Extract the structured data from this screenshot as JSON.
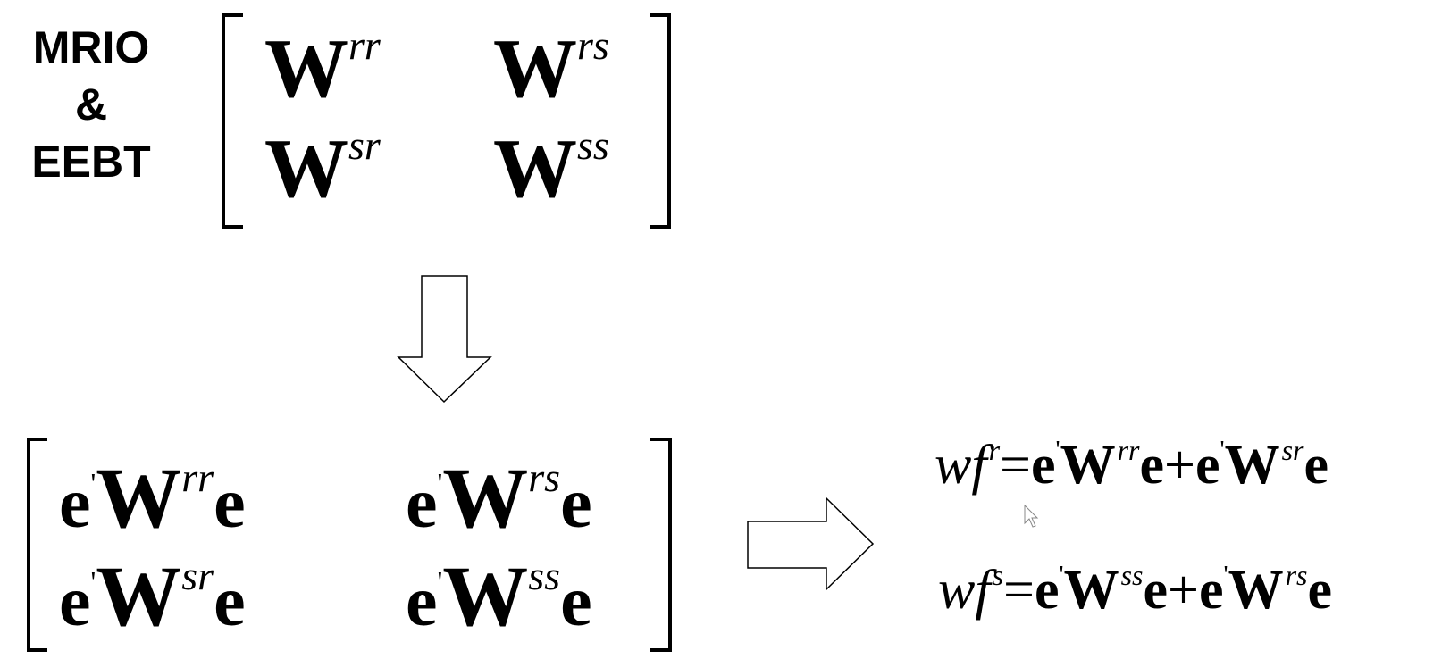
{
  "label": {
    "line1": "MRIO",
    "line2": "&",
    "line3": "EEBT"
  },
  "matrix_w": {
    "symbol": "W",
    "cells": [
      {
        "sup": "rr"
      },
      {
        "sup": "rs"
      },
      {
        "sup": "sr"
      },
      {
        "sup": "ss"
      }
    ]
  },
  "matrix_ewe": {
    "e": "e",
    "prime": "'",
    "W": "W",
    "cells": [
      {
        "sup": "rr"
      },
      {
        "sup": "rs"
      },
      {
        "sup": "sr"
      },
      {
        "sup": "ss"
      }
    ]
  },
  "equations": {
    "wf": "wf",
    "eq1": {
      "lhs_sup": "r",
      "term1_sup": "rr",
      "term2_sup": "sr"
    },
    "eq2": {
      "lhs_sup": "s",
      "term1_sup": "ss",
      "term2_sup": "rs"
    },
    "equals": "=",
    "plus": "+"
  }
}
